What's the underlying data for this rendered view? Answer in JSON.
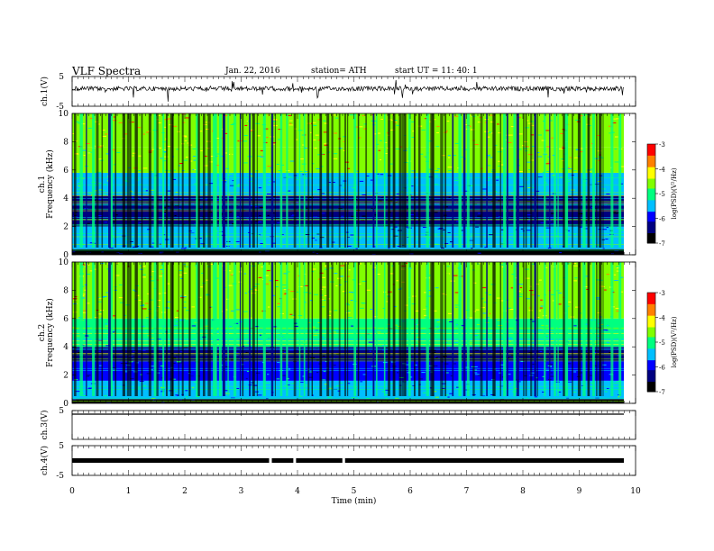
{
  "header": {
    "title": "VLF  Spectra",
    "date": "Jan.  22,  2016",
    "station": "station= ATH",
    "start": "start  UT  =     11: 40: 1"
  },
  "chart_data": {
    "type": "heatmap",
    "xlabel": "Time  (min)",
    "xlim": [
      0,
      10
    ],
    "x_ticks": [
      "0",
      "1",
      "2",
      "3",
      "4",
      "5",
      "6",
      "7",
      "8",
      "9",
      "10"
    ],
    "colormap": [
      "#000000",
      "#000080",
      "#0000ff",
      "#00bfff",
      "#00ff80",
      "#80ff00",
      "#ffff00",
      "#ff8000",
      "#ff0000",
      "#ffffff"
    ],
    "panels": [
      {
        "id": "ch1v",
        "kind": "waveform",
        "ylabel": "ch.1(V)",
        "ylim": [
          -5,
          5
        ],
        "y_ticks": [
          "5",
          "-5"
        ],
        "baseline": 0,
        "color": "#000000"
      },
      {
        "id": "ch1spec",
        "kind": "spectrogram",
        "ylabel_top": "ch.1",
        "ylabel": "Frequency  (kHz)",
        "ylim": [
          0,
          10
        ],
        "y_ticks": [
          "0",
          "2",
          "4",
          "6",
          "8",
          "10"
        ],
        "colorbar_label": "log(PSD)(V²/Hz)",
        "colorbar_range": [
          -7,
          -3
        ],
        "colorbar_ticks": [
          "-3",
          "-4",
          "-5",
          "-6",
          "-7"
        ],
        "bands": [
          {
            "f0": 0,
            "f1": 0.4,
            "level": 0.05
          },
          {
            "f0": 0.4,
            "f1": 2.0,
            "level": 0.35
          },
          {
            "f0": 2.0,
            "f1": 4.2,
            "level": 0.15
          },
          {
            "f0": 4.2,
            "f1": 5.8,
            "level": 0.42
          },
          {
            "f0": 5.8,
            "f1": 7.6,
            "level": 0.56
          },
          {
            "f0": 7.6,
            "f1": 10,
            "level": 0.66
          }
        ]
      },
      {
        "id": "ch2spec",
        "kind": "spectrogram",
        "ylabel_top": "ch.2",
        "ylabel": "Frequency  (kHz)",
        "ylim": [
          0,
          10
        ],
        "y_ticks": [
          "0",
          "2",
          "4",
          "6",
          "8",
          "10"
        ],
        "colorbar_label": "log(PSD)(V²/Hz)",
        "colorbar_range": [
          -7,
          -3
        ],
        "colorbar_ticks": [
          "-3",
          "-4",
          "-5",
          "-6",
          "-7"
        ],
        "bands": [
          {
            "f0": 0,
            "f1": 0.3,
            "level": 0.02
          },
          {
            "f0": 0.3,
            "f1": 1.6,
            "level": 0.4
          },
          {
            "f0": 1.6,
            "f1": 3.0,
            "level": 0.3
          },
          {
            "f0": 3.0,
            "f1": 4.0,
            "level": 0.15
          },
          {
            "f0": 4.0,
            "f1": 6.0,
            "level": 0.46
          },
          {
            "f0": 6.0,
            "f1": 10,
            "level": 0.58
          }
        ]
      },
      {
        "id": "ch3v",
        "kind": "waveform",
        "ylabel": "ch.3(V)",
        "ylim": [
          -5,
          5
        ],
        "y_ticks": [
          "5"
        ],
        "baseline": 5,
        "color": "#000000"
      },
      {
        "id": "ch4v",
        "kind": "waveform",
        "ylabel": "ch.4(V)",
        "ylim": [
          -5,
          5
        ],
        "y_ticks": [
          "5",
          "-5"
        ],
        "baseline": 0,
        "color": "#000000",
        "gaps_min": [
          3.52,
          3.95,
          4.82
        ]
      }
    ]
  }
}
